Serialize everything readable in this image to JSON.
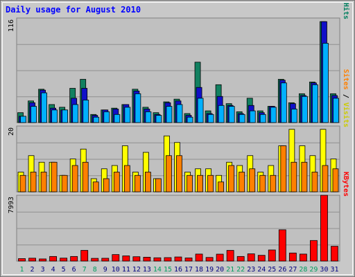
{
  "chart_data": {
    "type": "bar",
    "title": "Daily usage for August 2010",
    "categories": [
      "1",
      "2",
      "3",
      "4",
      "5",
      "6",
      "7",
      "8",
      "9",
      "10",
      "11",
      "12",
      "13",
      "14",
      "15",
      "16",
      "17",
      "18",
      "19",
      "20",
      "21",
      "22",
      "23",
      "24",
      "25",
      "26",
      "27",
      "28",
      "29",
      "30",
      "31"
    ],
    "weekend_days": [
      "1",
      "7",
      "8",
      "14",
      "15",
      "21",
      "22",
      "28",
      "29"
    ],
    "panels": [
      {
        "ymax": 116,
        "ymax_label": "116",
        "side_label": [
          {
            "text": "Pages",
            "color": "#00a0ff"
          },
          {
            "text": " / ",
            "color": "#000000"
          },
          {
            "text": "Files",
            "color": "#0000cc"
          },
          {
            "text": " / ",
            "color": "#000000"
          },
          {
            "text": "Hits",
            "color": "#008060"
          }
        ],
        "series": [
          {
            "name": "Hits",
            "color": "#118060",
            "values": [
              11,
              24,
              37,
              20,
              17,
              38,
              48,
              9,
              14,
              16,
              20,
              37,
              17,
              11,
              23,
              26,
              10,
              67,
              13,
              42,
              21,
              12,
              27,
              13,
              18,
              48,
              22,
              32,
              45,
              112,
              32
            ]
          },
          {
            "name": "Files",
            "color": "#1010c8",
            "values": [
              7,
              22,
              36,
              16,
              14,
              27,
              38,
              8,
              14,
              15,
              20,
              35,
              15,
              9,
              22,
              24,
              8,
              39,
              10,
              29,
              19,
              10,
              19,
              11,
              18,
              47,
              21,
              30,
              44,
              112,
              30
            ]
          },
          {
            "name": "Pages",
            "color": "#00b0ff",
            "values": [
              7,
              18,
              33,
              14,
              14,
              20,
              25,
              6,
              12,
              9,
              17,
              32,
              12,
              8,
              18,
              20,
              6,
              27,
              9,
              19,
              18,
              9,
              13,
              9,
              17,
              44,
              15,
              29,
              42,
              88,
              27
            ]
          }
        ]
      },
      {
        "ymax": 20,
        "ymax_label": "20",
        "side_label": [
          {
            "text": "Sites",
            "color": "#ff8000"
          },
          {
            "text": " / ",
            "color": "#000000"
          },
          {
            "text": "Visits",
            "color": "#cccc00"
          }
        ],
        "series": [
          {
            "name": "Visits",
            "color": "#ffff00",
            "values": [
              6,
              11,
              9,
              9,
              5,
              10,
              13,
              4,
              7,
              8,
              14,
              6,
              12,
              4,
              17,
              15,
              6,
              7,
              7,
              5,
              9,
              8,
              11,
              6,
              8,
              14,
              19,
              14,
              11,
              19,
              10
            ]
          },
          {
            "name": "Sites",
            "color": "#ff8000",
            "values": [
              5,
              6,
              6,
              9,
              5,
              8,
              9,
              3,
              4,
              6,
              8,
              5,
              6,
              4,
              11,
              11,
              5,
              5,
              5,
              3,
              8,
              6,
              7,
              5,
              5,
              14,
              9,
              9,
              6,
              8,
              7
            ]
          }
        ]
      },
      {
        "ymax": 7993,
        "ymax_label": "7993",
        "side_label": [
          {
            "text": "KBytes",
            "color": "#ff0000"
          }
        ],
        "series": [
          {
            "name": "KBytes",
            "color": "#ff0000",
            "values": [
              300,
              350,
              260,
              560,
              360,
              560,
              1300,
              330,
              340,
              790,
              630,
              530,
              470,
              400,
              420,
              500,
              380,
              850,
              440,
              840,
              1300,
              560,
              880,
              700,
              1350,
              3800,
              980,
              850,
              2500,
              7993,
              1800
            ]
          }
        ]
      }
    ]
  },
  "colors": {
    "panel_bg": "#c0c0c0",
    "grid": "#909090",
    "frame": "#808080",
    "title": "#0000ff",
    "weekday_label": "#000080",
    "weekend_label": "#00a060"
  }
}
